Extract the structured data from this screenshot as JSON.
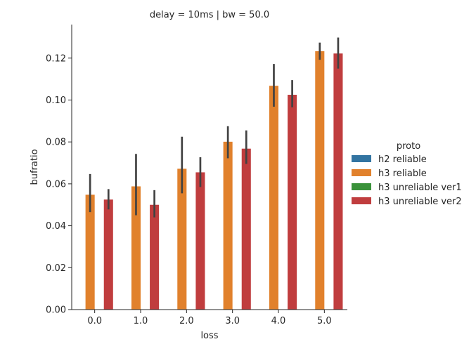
{
  "chart_data": {
    "type": "bar",
    "title": "delay = 10ms | bw = 50.0",
    "xlabel": "loss",
    "ylabel": "bufratio",
    "categories": [
      "0.0",
      "1.0",
      "2.0",
      "3.0",
      "4.0",
      "5.0"
    ],
    "ylim": [
      0,
      0.136
    ],
    "yticks": [
      0.0,
      0.02,
      0.04,
      0.06,
      0.08,
      0.1,
      0.12
    ],
    "ytick_labels": [
      "0.00",
      "0.02",
      "0.04",
      "0.06",
      "0.08",
      "0.10",
      "0.12"
    ],
    "grid": false,
    "legend": {
      "title": "proto",
      "placement": "right"
    },
    "series": [
      {
        "name": "h2 reliable",
        "color": "#3274a1",
        "values": [
          null,
          null,
          null,
          null,
          null,
          null
        ],
        "ci_low": [
          null,
          null,
          null,
          null,
          null,
          null
        ],
        "ci_high": [
          null,
          null,
          null,
          null,
          null,
          null
        ]
      },
      {
        "name": "h3 reliable",
        "color": "#e1812c",
        "values": [
          0.0548,
          0.0588,
          0.0672,
          0.0801,
          0.1068,
          0.1233
        ],
        "ci_low": [
          0.0465,
          0.045,
          0.0555,
          0.0722,
          0.0968,
          0.1192
        ],
        "ci_high": [
          0.0647,
          0.0743,
          0.0825,
          0.0875,
          0.1172,
          0.1274
        ]
      },
      {
        "name": "h3 unreliable ver1",
        "color": "#3a923a",
        "values": [
          null,
          null,
          null,
          null,
          null,
          null
        ],
        "ci_low": [
          null,
          null,
          null,
          null,
          null,
          null
        ],
        "ci_high": [
          null,
          null,
          null,
          null,
          null,
          null
        ]
      },
      {
        "name": "h3 unreliable ver2",
        "color": "#c03d3e",
        "values": [
          0.0525,
          0.05,
          0.0655,
          0.0768,
          0.1025,
          0.1222
        ],
        "ci_low": [
          0.0478,
          0.044,
          0.0585,
          0.0695,
          0.0965,
          0.115
        ],
        "ci_high": [
          0.0575,
          0.057,
          0.0727,
          0.0855,
          0.1095,
          0.1298
        ]
      }
    ]
  }
}
